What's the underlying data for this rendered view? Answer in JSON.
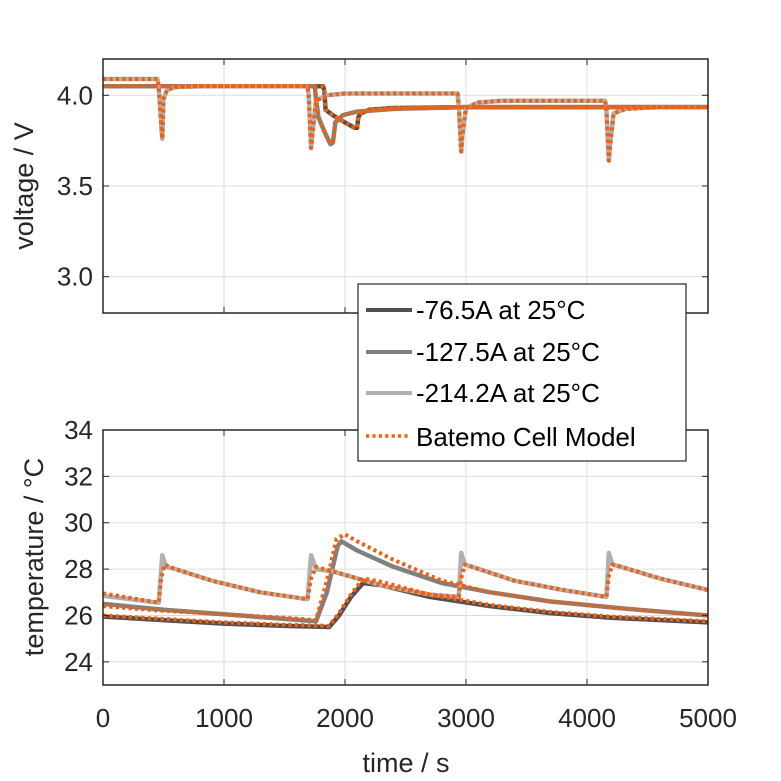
{
  "chart_data": [
    {
      "type": "line",
      "title": "",
      "xlabel": "",
      "ylabel": "voltage / V",
      "xlim": [
        0,
        5000
      ],
      "ylim": [
        2.8,
        4.2
      ],
      "xticks": [
        0,
        1000,
        2000,
        3000,
        4000,
        5000
      ],
      "yticks": [
        3.0,
        3.5,
        4.0
      ],
      "ytick_labels": [
        "3.0",
        "3.5",
        "4.0"
      ],
      "grid": true,
      "series": [
        {
          "name": "-76.5A at 25°C",
          "color": "#505050",
          "style": "solid",
          "x": [
            0,
            1820,
            1830,
            1840,
            1900,
            2000,
            2080,
            2100,
            2110,
            2130,
            2200,
            2400,
            3000,
            5000
          ],
          "y": [
            4.05,
            4.05,
            4.02,
            3.92,
            3.89,
            3.85,
            3.82,
            3.82,
            3.88,
            3.9,
            3.92,
            3.93,
            3.935,
            3.935
          ]
        },
        {
          "name": "-127.5A at 25°C",
          "color": "#808080",
          "style": "solid",
          "x": [
            0,
            1750,
            1760,
            1780,
            1830,
            1880,
            1900,
            1920,
            1980,
            2100,
            2400,
            3000,
            5000
          ],
          "y": [
            4.05,
            4.05,
            3.98,
            3.88,
            3.8,
            3.73,
            3.74,
            3.85,
            3.89,
            3.91,
            3.925,
            3.935,
            3.935
          ]
        },
        {
          "name": "-214.2A at 25°C",
          "color": "#b0b0b0",
          "style": "solid",
          "x": [
            0,
            450,
            460,
            480,
            490,
            500,
            530,
            600,
            800,
            1690,
            1700,
            1720,
            1730,
            1760,
            1850,
            2000,
            2930,
            2940,
            2960,
            2970,
            3000,
            3100,
            3300,
            4150,
            4160,
            4180,
            4190,
            4220,
            4320,
            4600,
            5000
          ],
          "y": [
            4.09,
            4.09,
            4.05,
            3.85,
            3.76,
            3.98,
            4.03,
            4.045,
            4.05,
            4.05,
            4.0,
            3.71,
            3.78,
            3.97,
            4.0,
            4.01,
            4.01,
            3.95,
            3.69,
            3.78,
            3.93,
            3.96,
            3.97,
            3.97,
            3.92,
            3.64,
            3.72,
            3.9,
            3.925,
            3.935,
            3.935
          ]
        },
        {
          "name": "Batemo Cell Model",
          "color": "#f06010",
          "style": "dotted",
          "x": [
            0,
            450,
            460,
            480,
            490,
            500,
            530,
            600,
            800,
            1690,
            1700,
            1720,
            1730,
            1760,
            1850,
            2000,
            2930,
            2940,
            2960,
            2970,
            3000,
            3100,
            3300,
            4150,
            4160,
            4180,
            4190,
            4220,
            4320,
            4600,
            5000
          ],
          "y": [
            4.09,
            4.09,
            4.05,
            3.85,
            3.76,
            3.98,
            4.03,
            4.045,
            4.05,
            4.05,
            4.0,
            3.71,
            3.78,
            3.97,
            4.0,
            4.01,
            4.01,
            3.95,
            3.69,
            3.78,
            3.93,
            3.96,
            3.97,
            3.97,
            3.92,
            3.64,
            3.72,
            3.9,
            3.925,
            3.935,
            3.935
          ]
        },
        {
          "name": "Batemo Cell Model",
          "color": "#f06010",
          "style": "dotted",
          "x": [
            0,
            1750,
            1760,
            1780,
            1830,
            1880,
            1900,
            1920,
            1980,
            2100,
            2400,
            3000,
            5000
          ],
          "y": [
            4.05,
            4.05,
            3.98,
            3.88,
            3.8,
            3.73,
            3.74,
            3.85,
            3.89,
            3.91,
            3.925,
            3.935,
            3.935
          ]
        },
        {
          "name": "Batemo Cell Model",
          "color": "#f06010",
          "style": "dotted",
          "x": [
            0,
            1820,
            1830,
            1840,
            1900,
            2000,
            2080,
            2100,
            2110,
            2130,
            2200,
            2400,
            3000,
            5000
          ],
          "y": [
            4.05,
            4.05,
            4.02,
            3.92,
            3.89,
            3.85,
            3.82,
            3.82,
            3.88,
            3.9,
            3.92,
            3.93,
            3.935,
            3.935
          ]
        }
      ]
    },
    {
      "type": "line",
      "title": "",
      "xlabel": "time / s",
      "ylabel": "temperature / °C",
      "xlim": [
        0,
        5000
      ],
      "ylim": [
        23,
        34
      ],
      "xticks": [
        0,
        1000,
        2000,
        3000,
        4000,
        5000
      ],
      "xtick_labels": [
        "0",
        "1000",
        "2000",
        "3000",
        "4000",
        "5000"
      ],
      "yticks": [
        24,
        26,
        28,
        30,
        32,
        34
      ],
      "ytick_labels": [
        "24",
        "26",
        "28",
        "30",
        "32",
        "34"
      ],
      "grid": true,
      "series": [
        {
          "name": "-76.5A at 25°C",
          "color": "#505050",
          "style": "solid",
          "x": [
            0,
            500,
            1000,
            1500,
            1870,
            1950,
            2050,
            2150,
            2300,
            2700,
            3200,
            3700,
            4200,
            5000
          ],
          "y": [
            25.95,
            25.8,
            25.65,
            25.55,
            25.5,
            26.0,
            26.8,
            27.4,
            27.3,
            26.8,
            26.4,
            26.1,
            25.9,
            25.7
          ]
        },
        {
          "name": "-127.5A at 25°C",
          "color": "#808080",
          "style": "solid",
          "x": [
            0,
            500,
            1000,
            1500,
            1760,
            1850,
            1940,
            1970,
            2100,
            2400,
            2800,
            3200,
            3700,
            4300,
            5000
          ],
          "y": [
            26.5,
            26.25,
            26.05,
            25.85,
            25.75,
            27.0,
            29.0,
            29.2,
            28.8,
            28.1,
            27.4,
            27.0,
            26.6,
            26.3,
            26.0
          ]
        },
        {
          "name": "-214.2A at 25°C",
          "color": "#b0b0b0",
          "style": "solid",
          "x": [
            0,
            460,
            490,
            520,
            600,
            900,
            1300,
            1690,
            1720,
            1760,
            1900,
            2300,
            2700,
            2940,
            2960,
            2990,
            3050,
            3400,
            3800,
            4160,
            4180,
            4210,
            4280,
            4600,
            5000
          ],
          "y": [
            26.85,
            26.55,
            28.6,
            28.1,
            28.0,
            27.5,
            27.0,
            26.7,
            28.6,
            28.0,
            27.9,
            27.3,
            26.9,
            26.8,
            28.7,
            28.2,
            28.1,
            27.5,
            27.1,
            26.8,
            28.7,
            28.2,
            28.1,
            27.6,
            27.1
          ]
        },
        {
          "name": "Batemo Cell Model",
          "color": "#f06010",
          "style": "dotted",
          "x": [
            0,
            460,
            480,
            510,
            600,
            900,
            1300,
            1690,
            1720,
            1760,
            1900,
            2300,
            2700,
            2940,
            2960,
            2990,
            3050,
            3400,
            3800,
            4160,
            4180,
            4210,
            4280,
            4600,
            5000
          ],
          "y": [
            26.95,
            26.55,
            27.6,
            28.2,
            28.0,
            27.5,
            27.0,
            26.7,
            27.6,
            28.1,
            27.9,
            27.3,
            26.9,
            26.8,
            27.6,
            28.2,
            28.1,
            27.5,
            27.1,
            26.8,
            27.7,
            28.2,
            28.1,
            27.6,
            27.1
          ]
        },
        {
          "name": "Batemo Cell Model",
          "color": "#f06010",
          "style": "dotted",
          "x": [
            0,
            500,
            1000,
            1500,
            1760,
            1850,
            1930,
            2000,
            2100,
            2400,
            2800,
            3200,
            3700,
            4300,
            5000
          ],
          "y": [
            26.4,
            26.2,
            26.05,
            25.9,
            25.8,
            27.5,
            29.3,
            29.5,
            29.2,
            28.4,
            27.5,
            27.0,
            26.6,
            26.3,
            26.0
          ]
        },
        {
          "name": "Batemo Cell Model",
          "color": "#f06010",
          "style": "dotted",
          "x": [
            0,
            500,
            1000,
            1500,
            1870,
            1950,
            2050,
            2150,
            2300,
            2700,
            3200,
            3700,
            4200,
            5000
          ],
          "y": [
            26.0,
            25.85,
            25.7,
            25.6,
            25.55,
            26.1,
            26.9,
            27.6,
            27.45,
            26.9,
            26.45,
            26.15,
            25.95,
            25.75
          ]
        }
      ]
    }
  ],
  "legend": {
    "placement": "center-right",
    "entries": [
      {
        "label": "-76.5A at 25°C",
        "color": "#505050",
        "style": "solid"
      },
      {
        "label": "-127.5A at 25°C",
        "color": "#808080",
        "style": "solid"
      },
      {
        "label": "-214.2A at 25°C",
        "color": "#b0b0b0",
        "style": "solid"
      },
      {
        "label": "Batemo Cell Model",
        "color": "#f06010",
        "style": "dotted"
      }
    ]
  }
}
